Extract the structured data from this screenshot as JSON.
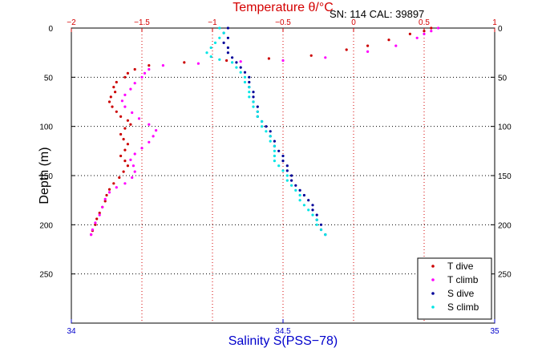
{
  "chart_data": {
    "type": "scatter",
    "title": "Temperature θ/°C",
    "annotation": "SN: 114  CAL: 39897",
    "ylabel": "Depth (m)",
    "xlabel_bottom": "Salinity S(PSS−78)",
    "xlabel_top": "Temperature θ/°C",
    "y_reversed": true,
    "ylim": [
      0,
      300
    ],
    "y_ticks": [
      0,
      50,
      100,
      150,
      200,
      250
    ],
    "x_bottom": {
      "lim": [
        34,
        35
      ],
      "ticks": [
        34,
        34.5,
        35
      ],
      "tick_labels": [
        "34",
        "34.5",
        "35"
      ]
    },
    "x_top": {
      "lim": [
        -2,
        1
      ],
      "ticks": [
        -2,
        -1.5,
        -1,
        -0.5,
        0,
        0.5,
        1
      ],
      "tick_labels": [
        "−2",
        "−1.5",
        "−1",
        "−0.5",
        "0",
        "0.5",
        "1"
      ]
    },
    "grid": true,
    "legend_position": "bottom-right",
    "series": [
      {
        "name": "T dive",
        "axis": "top",
        "color": "#cc0000",
        "points": [
          [
            0.55,
            0
          ],
          [
            0.5,
            3
          ],
          [
            0.4,
            6
          ],
          [
            0.25,
            12
          ],
          [
            0.1,
            18
          ],
          [
            -0.05,
            22
          ],
          [
            -0.3,
            28
          ],
          [
            -0.6,
            31
          ],
          [
            -0.9,
            33
          ],
          [
            -1.2,
            35
          ],
          [
            -1.45,
            38
          ],
          [
            -1.55,
            42
          ],
          [
            -1.6,
            46
          ],
          [
            -1.62,
            50
          ],
          [
            -1.68,
            55
          ],
          [
            -1.7,
            60
          ],
          [
            -1.69,
            65
          ],
          [
            -1.72,
            70
          ],
          [
            -1.73,
            75
          ],
          [
            -1.71,
            80
          ],
          [
            -1.68,
            85
          ],
          [
            -1.65,
            90
          ],
          [
            -1.6,
            94
          ],
          [
            -1.58,
            98
          ],
          [
            -1.62,
            102
          ],
          [
            -1.65,
            108
          ],
          [
            -1.63,
            113
          ],
          [
            -1.6,
            118
          ],
          [
            -1.62,
            124
          ],
          [
            -1.65,
            130
          ],
          [
            -1.62,
            135
          ],
          [
            -1.6,
            140
          ],
          [
            -1.63,
            146
          ],
          [
            -1.66,
            152
          ],
          [
            -1.7,
            158
          ],
          [
            -1.73,
            164
          ],
          [
            -1.75,
            170
          ],
          [
            -1.76,
            176
          ],
          [
            -1.78,
            182
          ],
          [
            -1.8,
            188
          ],
          [
            -1.82,
            194
          ],
          [
            -1.83,
            200
          ],
          [
            -1.85,
            206
          ],
          [
            -1.86,
            210
          ]
        ]
      },
      {
        "name": "T climb",
        "axis": "top",
        "color": "#ff00ff",
        "points": [
          [
            -1.86,
            210
          ],
          [
            -1.85,
            205
          ],
          [
            -1.83,
            198
          ],
          [
            -1.8,
            190
          ],
          [
            -1.78,
            182
          ],
          [
            -1.76,
            174
          ],
          [
            -1.73,
            167
          ],
          [
            -1.68,
            162
          ],
          [
            -1.62,
            158
          ],
          [
            -1.57,
            152
          ],
          [
            -1.55,
            146
          ],
          [
            -1.56,
            140
          ],
          [
            -1.58,
            134
          ],
          [
            -1.55,
            128
          ],
          [
            -1.5,
            122
          ],
          [
            -1.45,
            116
          ],
          [
            -1.42,
            110
          ],
          [
            -1.4,
            104
          ],
          [
            -1.45,
            98
          ],
          [
            -1.52,
            92
          ],
          [
            -1.57,
            86
          ],
          [
            -1.62,
            80
          ],
          [
            -1.64,
            74
          ],
          [
            -1.62,
            68
          ],
          [
            -1.58,
            62
          ],
          [
            -1.55,
            56
          ],
          [
            -1.5,
            50
          ],
          [
            -1.48,
            46
          ],
          [
            -1.45,
            42
          ],
          [
            -1.35,
            38
          ],
          [
            -1.1,
            36
          ],
          [
            -0.8,
            34
          ],
          [
            -0.5,
            33
          ],
          [
            -0.2,
            30
          ],
          [
            0.1,
            24
          ],
          [
            0.3,
            18
          ],
          [
            0.45,
            10
          ],
          [
            0.5,
            6
          ],
          [
            0.55,
            3
          ],
          [
            0.6,
            0
          ]
        ]
      },
      {
        "name": "S dive",
        "axis": "bottom",
        "color": "#000099",
        "points": [
          [
            34.37,
            0
          ],
          [
            34.36,
            5
          ],
          [
            34.37,
            10
          ],
          [
            34.36,
            15
          ],
          [
            34.37,
            20
          ],
          [
            34.37,
            25
          ],
          [
            34.38,
            30
          ],
          [
            34.39,
            35
          ],
          [
            34.4,
            40
          ],
          [
            34.41,
            45
          ],
          [
            34.42,
            50
          ],
          [
            34.42,
            55
          ],
          [
            34.42,
            60
          ],
          [
            34.43,
            65
          ],
          [
            34.43,
            70
          ],
          [
            34.43,
            75
          ],
          [
            34.44,
            80
          ],
          [
            34.44,
            85
          ],
          [
            34.44,
            90
          ],
          [
            34.45,
            95
          ],
          [
            34.46,
            100
          ],
          [
            34.47,
            105
          ],
          [
            34.47,
            110
          ],
          [
            34.48,
            115
          ],
          [
            34.48,
            120
          ],
          [
            34.49,
            125
          ],
          [
            34.5,
            130
          ],
          [
            34.5,
            135
          ],
          [
            34.51,
            140
          ],
          [
            34.51,
            145
          ],
          [
            34.52,
            150
          ],
          [
            34.52,
            155
          ],
          [
            34.53,
            160
          ],
          [
            34.54,
            165
          ],
          [
            34.55,
            170
          ],
          [
            34.56,
            175
          ],
          [
            34.57,
            180
          ],
          [
            34.57,
            185
          ],
          [
            34.58,
            190
          ],
          [
            34.58,
            195
          ],
          [
            34.59,
            200
          ],
          [
            34.59,
            205
          ],
          [
            34.6,
            210
          ]
        ]
      },
      {
        "name": "S climb",
        "axis": "bottom",
        "color": "#00e5e5",
        "points": [
          [
            34.6,
            210
          ],
          [
            34.59,
            205
          ],
          [
            34.58,
            200
          ],
          [
            34.58,
            195
          ],
          [
            34.57,
            190
          ],
          [
            34.56,
            185
          ],
          [
            34.55,
            180
          ],
          [
            34.54,
            175
          ],
          [
            34.54,
            170
          ],
          [
            34.53,
            165
          ],
          [
            34.52,
            160
          ],
          [
            34.51,
            155
          ],
          [
            34.51,
            150
          ],
          [
            34.5,
            145
          ],
          [
            34.49,
            140
          ],
          [
            34.48,
            135
          ],
          [
            34.48,
            130
          ],
          [
            34.48,
            125
          ],
          [
            34.48,
            120
          ],
          [
            34.47,
            115
          ],
          [
            34.47,
            110
          ],
          [
            34.46,
            105
          ],
          [
            34.45,
            100
          ],
          [
            34.45,
            95
          ],
          [
            34.44,
            90
          ],
          [
            34.44,
            85
          ],
          [
            34.43,
            80
          ],
          [
            34.43,
            75
          ],
          [
            34.42,
            70
          ],
          [
            34.42,
            65
          ],
          [
            34.42,
            60
          ],
          [
            34.41,
            55
          ],
          [
            34.41,
            50
          ],
          [
            34.4,
            45
          ],
          [
            34.39,
            40
          ],
          [
            34.38,
            35
          ],
          [
            34.35,
            32
          ],
          [
            34.33,
            29
          ],
          [
            34.32,
            25
          ],
          [
            34.33,
            20
          ],
          [
            34.34,
            15
          ],
          [
            34.35,
            10
          ],
          [
            34.36,
            5
          ],
          [
            34.35,
            0
          ]
        ]
      }
    ]
  }
}
